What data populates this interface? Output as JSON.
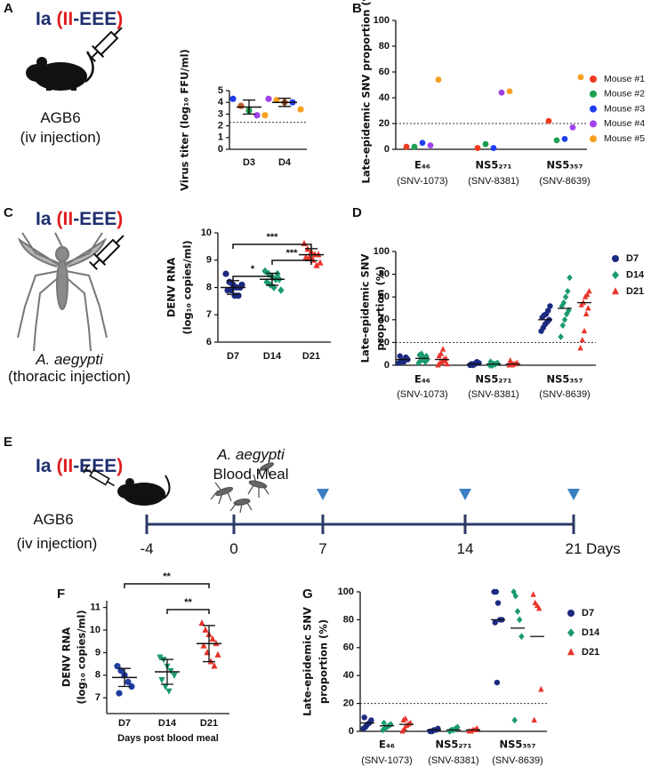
{
  "panels": [
    "A",
    "B",
    "C",
    "D",
    "E",
    "F",
    "G"
  ],
  "virus_label": [
    "Ia",
    "(",
    "II",
    "-EEE",
    ")"
  ],
  "panel_a_illustration": {
    "host": "AGB6",
    "route": "(iv injection)"
  },
  "panel_c_illustration": {
    "host": "A. aegypti",
    "route": "(thoracic injection)"
  },
  "timeline": {
    "host": "AGB6",
    "route": "(iv injection)",
    "vector": "A. aegypti",
    "event": "Blood Meal",
    "ticks": [
      -4,
      0,
      7,
      14,
      21
    ],
    "unit": "Days",
    "sampling_days": [
      7,
      14,
      21
    ]
  },
  "chart_data": [
    {
      "type": "dot",
      "ylabel": "Virus titer (log₁₀ FFU/ml)",
      "ylim": [
        0,
        5
      ],
      "yticks": [
        0,
        1,
        2,
        3,
        4,
        5
      ],
      "threshold": 2.3,
      "groups": [
        {
          "name": "D3",
          "values": [
            4.3,
            3.7,
            3.3,
            2.9,
            2.9
          ],
          "colors": [
            "#1e3ef0",
            "#c0602a",
            "#1aa050",
            "#a040e8",
            "#f5a020"
          ],
          "mean": 3.6,
          "sd": 0.6
        },
        {
          "name": "D4",
          "values": [
            4.3,
            4.2,
            4.0,
            4.0,
            3.4
          ],
          "colors": [
            "#a040e8",
            "#f5a020",
            "#c0602a",
            "#1e3ef0",
            "#f5a020"
          ],
          "mean": 4.0,
          "sd": 0.35
        }
      ]
    },
    {
      "type": "strip",
      "ylabel": "Late-epidemic SNV proportion (%)",
      "ylim": [
        0,
        100
      ],
      "yticks": [
        0,
        20,
        40,
        60,
        80,
        100
      ],
      "threshold": 20,
      "categories": [
        "E₄₆",
        "NS5₂₇₁",
        "NS5₃₅₇"
      ],
      "category_sublabels": [
        "(SNV-1073)",
        "(SNV-8381)",
        "(SNV-8639)"
      ],
      "legend": "right",
      "series": [
        {
          "name": "Mouse #1",
          "color": "#f03a1e",
          "marker": "circle",
          "values": [
            2,
            1,
            22
          ]
        },
        {
          "name": "Mouse #2",
          "color": "#1aa050",
          "marker": "circle",
          "values": [
            2,
            4,
            7
          ]
        },
        {
          "name": "Mouse #3",
          "color": "#1e3ef0",
          "marker": "circle",
          "values": [
            5,
            1,
            8
          ]
        },
        {
          "name": "Mouse #4",
          "color": "#a040e8",
          "marker": "circle",
          "values": [
            3,
            44,
            17
          ]
        },
        {
          "name": "Mouse #5",
          "color": "#f5a020",
          "marker": "circle",
          "values": [
            54,
            45,
            56
          ]
        }
      ]
    },
    {
      "type": "dot",
      "ylabel": [
        "DENV RNA",
        "(log₁₀ copies/ml)"
      ],
      "ylim": [
        6,
        10
      ],
      "yticks": [
        6,
        7,
        8,
        9,
        10
      ],
      "groups": [
        {
          "name": "D7",
          "color": "#1b2a80",
          "marker": "circle",
          "values": [
            8.5,
            8.2,
            8.1,
            8.0,
            8.0,
            7.9,
            7.9,
            7.7,
            7.7,
            8.1
          ],
          "mean": 8.0,
          "sd": 0.25
        },
        {
          "name": "D14",
          "color": "#1a9a70",
          "marker": "diamond",
          "values": [
            8.6,
            8.5,
            8.4,
            8.3,
            8.3,
            8.2,
            8.1,
            8.0,
            8.5,
            7.9
          ],
          "mean": 8.3,
          "sd": 0.22
        },
        {
          "name": "D21",
          "color": "#e8342a",
          "marker": "triangle",
          "values": [
            9.6,
            9.4,
            9.3,
            9.2,
            9.2,
            9.1,
            9.1,
            9.0,
            8.8,
            8.9
          ],
          "mean": 9.2,
          "sd": 0.22
        }
      ],
      "brackets": [
        {
          "between": [
            "D7",
            "D14"
          ],
          "label": "*"
        },
        {
          "between": [
            "D14",
            "D21"
          ],
          "label": "***"
        },
        {
          "between": [
            "D7",
            "D21"
          ],
          "label": "***"
        }
      ]
    },
    {
      "type": "strip",
      "ylabel": [
        "Late-epidemic SNV",
        "proportion (%)"
      ],
      "ylim": [
        0,
        100
      ],
      "yticks": [
        0,
        20,
        40,
        60,
        80,
        100
      ],
      "threshold": 20,
      "categories": [
        "E₄₆",
        "NS5₂₇₁",
        "NS5₃₅₇"
      ],
      "category_sublabels": [
        "(SNV-1073)",
        "(SNV-8381)",
        "(SNV-8639)"
      ],
      "legend": "right",
      "series": [
        {
          "name": "D7",
          "color": "#1b2a80",
          "marker": "circle",
          "values": [
            [
              2,
              3,
              4,
              5,
              6,
              8,
              4,
              3,
              7,
              5
            ],
            [
              0,
              1,
              1,
              2,
              2,
              1,
              0,
              1,
              3,
              2
            ],
            [
              30,
              33,
              36,
              38,
              40,
              42,
              44,
              45,
              48,
              52
            ]
          ],
          "means": [
            5,
            1,
            40
          ]
        },
        {
          "name": "D14",
          "color": "#1a9a70",
          "marker": "diamond",
          "values": [
            [
              2,
              4,
              5,
              6,
              8,
              9,
              10,
              7,
              3,
              5
            ],
            [
              0,
              0,
              1,
              1,
              2,
              3,
              0,
              1
            ],
            [
              25,
              35,
              40,
              45,
              48,
              52,
              55,
              60,
              65,
              77
            ]
          ],
          "means": [
            6,
            1,
            50
          ]
        },
        {
          "name": "D21",
          "color": "#e8342a",
          "marker": "triangle",
          "values": [
            [
              0,
              2,
              3,
              5,
              6,
              8,
              10,
              14,
              4,
              1
            ],
            [
              0,
              0,
              1,
              1,
              2,
              4,
              0
            ],
            [
              15,
              22,
              30,
              45,
              50,
              53,
              55,
              60,
              62,
              65
            ]
          ],
          "means": [
            5,
            1,
            55
          ]
        }
      ]
    },
    {
      "type": "dot",
      "ylabel": [
        "DENV RNA",
        "(log₁₀ copies/ml)"
      ],
      "xlabel": "Days post blood meal",
      "ylim": [
        6.3,
        11.3
      ],
      "yticks": [
        7,
        8,
        9,
        10,
        11
      ],
      "groups": [
        {
          "name": "D7",
          "color": "#1e3ea0",
          "marker": "circle",
          "values": [
            8.4,
            8.2,
            8.0,
            7.7,
            7.5,
            7.2
          ],
          "mean": 7.9,
          "sd": 0.4
        },
        {
          "name": "D14",
          "color": "#1a9a70",
          "marker": "triangle-down",
          "values": [
            8.8,
            8.7,
            8.4,
            8.2,
            8.0,
            7.8,
            7.5,
            7.3
          ],
          "mean": 8.15,
          "sd": 0.55
        },
        {
          "name": "D21",
          "color": "#e8342a",
          "marker": "triangle",
          "values": [
            10.3,
            10.0,
            9.8,
            9.6,
            9.4,
            9.3,
            9.0,
            8.6,
            8.4,
            8.9
          ],
          "mean": 9.4,
          "sd": 0.8
        }
      ],
      "brackets": [
        {
          "between": [
            "D14",
            "D21"
          ],
          "label": "**"
        },
        {
          "between": [
            "D7",
            "D21"
          ],
          "label": "**"
        }
      ]
    },
    {
      "type": "strip",
      "ylabel": [
        "Late-epidemic SNV",
        "proportion (%)"
      ],
      "ylim": [
        0,
        100
      ],
      "yticks": [
        0,
        20,
        40,
        60,
        80,
        100
      ],
      "threshold": 20,
      "categories": [
        "E₄₆",
        "NS5₂₇₁",
        "NS5₃₅₇"
      ],
      "category_sublabels": [
        "(SNV-1073)",
        "(SNV-8381)",
        "(SNV-8639)"
      ],
      "legend": "right",
      "series": [
        {
          "name": "D7",
          "color": "#1b2a80",
          "marker": "circle",
          "values": [
            [
              2,
              3,
              5,
              6,
              8,
              10,
              4
            ],
            [
              0,
              0,
              1,
              1,
              2
            ],
            [
              100,
              100,
              92,
              80,
              80,
              78,
              35
            ]
          ],
          "means": [
            6,
            1,
            80
          ]
        },
        {
          "name": "D14",
          "color": "#1a9a70",
          "marker": "diamond",
          "values": [
            [
              1,
              2,
              3,
              4,
              5,
              6
            ],
            [
              0,
              1,
              1,
              2,
              3
            ],
            [
              100,
              97,
              86,
              80,
              68,
              8
            ]
          ],
          "means": [
            4,
            1,
            74
          ]
        },
        {
          "name": "D21",
          "color": "#e8342a",
          "marker": "triangle",
          "values": [
            [
              0,
              2,
              4,
              5,
              6,
              8,
              9
            ],
            [
              0,
              0,
              1,
              1,
              2
            ],
            [
              98,
              92,
              90,
              88,
              30,
              8
            ]
          ],
          "means": [
            5,
            1,
            68
          ]
        }
      ]
    }
  ]
}
